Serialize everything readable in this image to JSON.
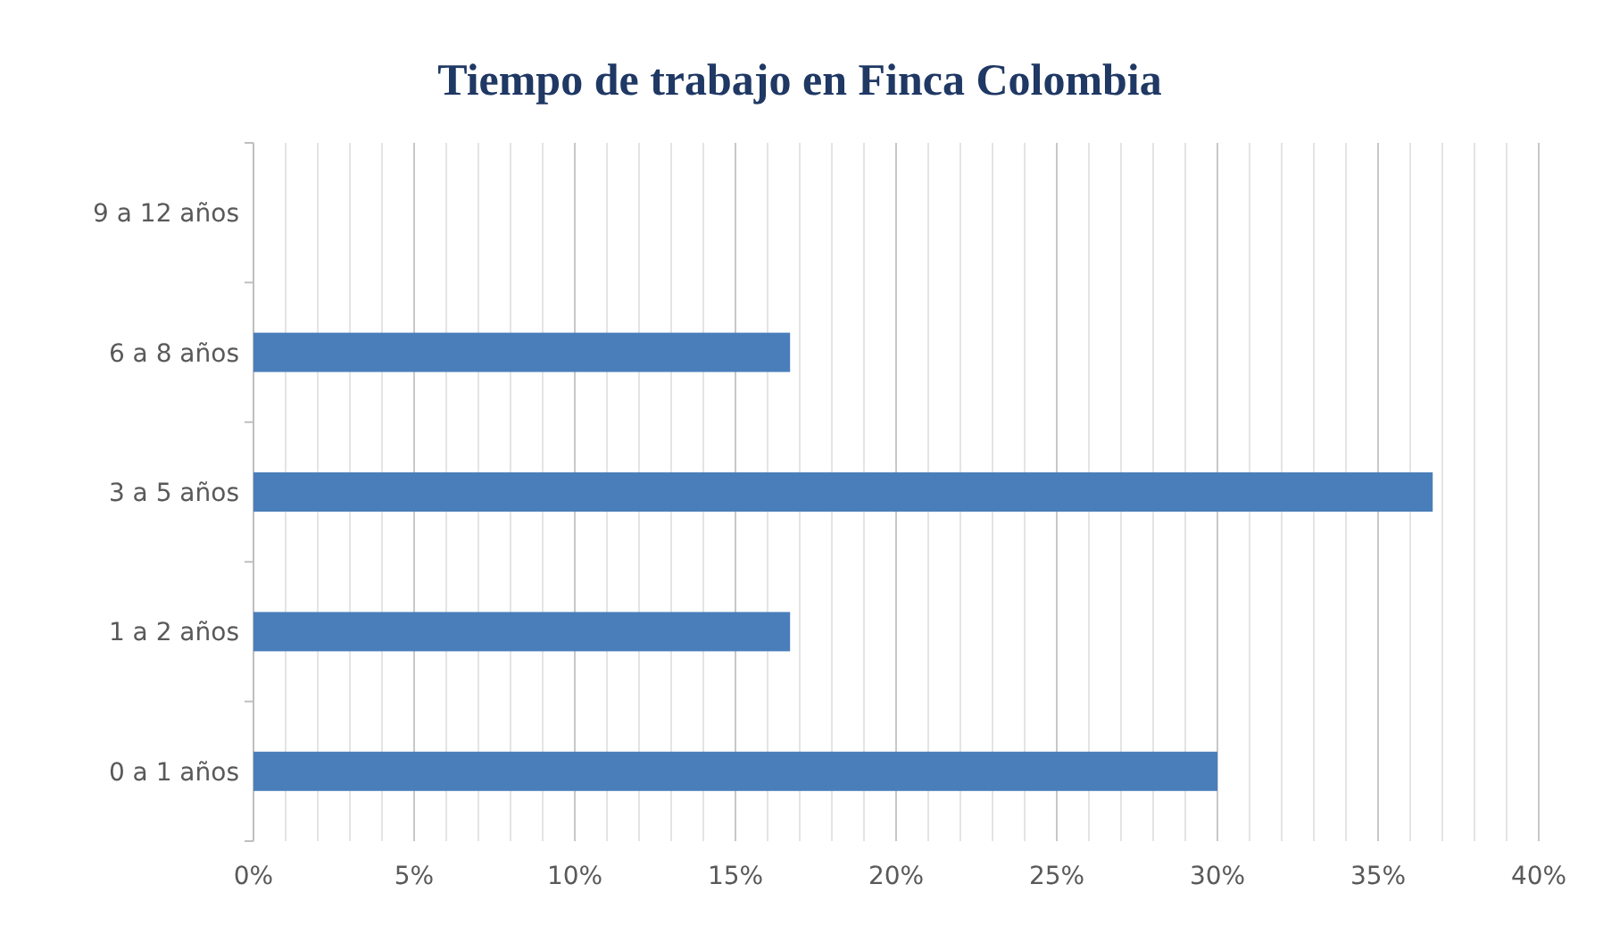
{
  "chart_data": {
    "type": "bar",
    "orientation": "horizontal",
    "title": "Tiempo de trabajo en Finca Colombia",
    "categories": [
      "9 a 12 años",
      "6 a 8 años",
      "3 a 5 años",
      "1 a 2 años",
      "0 a 1 años"
    ],
    "values": [
      0,
      16.7,
      36.7,
      16.7,
      30
    ],
    "color": "#4a7ebb",
    "xlim": [
      0,
      40
    ],
    "xticks": [
      {
        "value": 0,
        "label": "0%"
      },
      {
        "value": 1,
        "label": null
      },
      {
        "value": 2,
        "label": null
      },
      {
        "value": 3,
        "label": null
      },
      {
        "value": 4,
        "label": null
      },
      {
        "value": 5,
        "label": "5%"
      },
      {
        "value": 6,
        "label": null
      },
      {
        "value": 7,
        "label": null
      },
      {
        "value": 8,
        "label": null
      },
      {
        "value": 9,
        "label": null
      },
      {
        "value": 10,
        "label": "10%"
      },
      {
        "value": 11,
        "label": null
      },
      {
        "value": 12,
        "label": null
      },
      {
        "value": 13,
        "label": null
      },
      {
        "value": 14,
        "label": null
      },
      {
        "value": 15,
        "label": "15%"
      },
      {
        "value": 16,
        "label": null
      },
      {
        "value": 17,
        "label": null
      },
      {
        "value": 18,
        "label": null
      },
      {
        "value": 19,
        "label": null
      },
      {
        "value": 20,
        "label": "20%"
      },
      {
        "value": 21,
        "label": null
      },
      {
        "value": 22,
        "label": null
      },
      {
        "value": 23,
        "label": null
      },
      {
        "value": 24,
        "label": null
      },
      {
        "value": 25,
        "label": "25%"
      },
      {
        "value": 26,
        "label": null
      },
      {
        "value": 27,
        "label": null
      },
      {
        "value": 28,
        "label": null
      },
      {
        "value": 29,
        "label": null
      },
      {
        "value": 30,
        "label": "30%"
      },
      {
        "value": 31,
        "label": null
      },
      {
        "value": 32,
        "label": null
      },
      {
        "value": 33,
        "label": null
      },
      {
        "value": 34,
        "label": null
      },
      {
        "value": 35,
        "label": "35%"
      },
      {
        "value": 36,
        "label": null
      },
      {
        "value": 37,
        "label": null
      },
      {
        "value": 38,
        "label": null
      },
      {
        "value": 39,
        "label": null
      },
      {
        "value": 40,
        "label": "40%"
      }
    ],
    "grid": "x"
  }
}
